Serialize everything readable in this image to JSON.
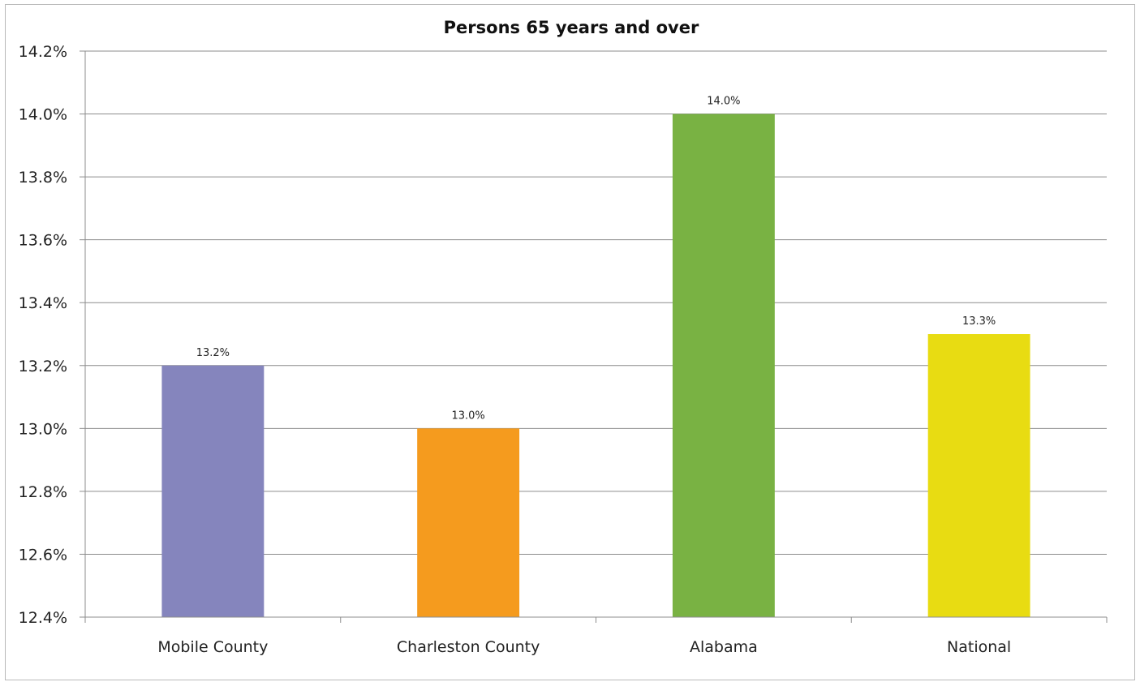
{
  "chart_data": {
    "type": "bar",
    "title": "Persons 65 years and over",
    "xlabel": "",
    "ylabel": "",
    "categories": [
      "Mobile County",
      "Charleston County",
      "Alabama",
      "National"
    ],
    "values": [
      13.2,
      13.0,
      14.0,
      13.3
    ],
    "value_labels": [
      "13.2%",
      "13.0%",
      "14.0%",
      "13.3%"
    ],
    "colors": [
      "#8585bd",
      "#f59b1e",
      "#79b243",
      "#e8dc12"
    ],
    "ylim": [
      12.4,
      14.2
    ],
    "yticks": [
      12.4,
      12.6,
      12.8,
      13.0,
      13.2,
      13.4,
      13.6,
      13.8,
      14.0,
      14.2
    ],
    "ytick_labels": [
      "12.4%",
      "12.6%",
      "12.8%",
      "13.0%",
      "13.2%",
      "13.4%",
      "13.6%",
      "13.8%",
      "14.0%",
      "14.2%"
    ],
    "grid": true,
    "legend": "none"
  }
}
